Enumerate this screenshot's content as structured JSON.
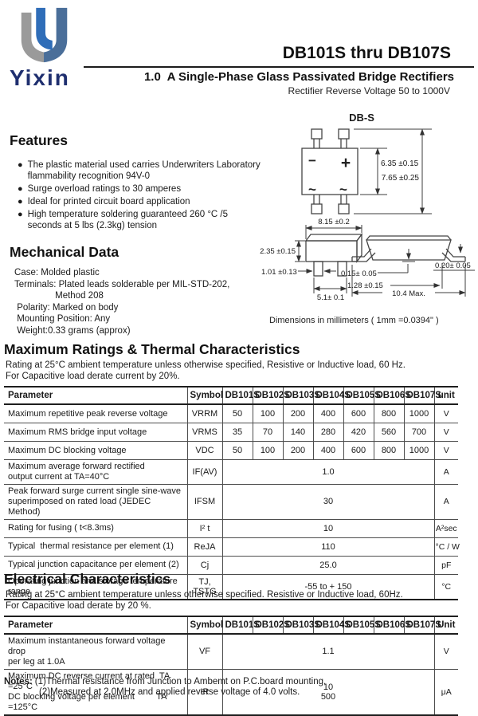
{
  "header": {
    "logo_text": "Yixin",
    "part_range": "DB101S thru DB107S",
    "subtitle": "1.0  A Single-Phase Glass Passivated Bridge Rectifiers",
    "subtitle2": "Rectifier Reverse Voltage 50 to 1000V"
  },
  "features": {
    "title": "Features",
    "bullet": "●",
    "items": [
      "The plastic material used carries Underwriters Laboratory\nflammability recognition 94V-0",
      "Surge overload ratings to 30 amperes",
      "Ideal for printed circuit board application",
      "High temperature soldering guaranteed 260 °C /5\nseconds at 5 lbs (2.3kg) tension"
    ]
  },
  "mechanical": {
    "title": "Mechanical Data",
    "lines": [
      "Case: Molded plastic",
      "Terminals: Plated leads solderable per MIL-STD-202,",
      "                Method 208",
      " Polarity: Marked on body",
      " Mounting Position: Any",
      " Weight:0.33 grams (approx)"
    ]
  },
  "package": {
    "name": "DB-S",
    "marks": {
      "minus": "−",
      "plus": "+",
      "ac1": "~",
      "ac2": "~"
    },
    "dims": {
      "body_h": "6.35 ±0.15",
      "overall_h": "7.65 ±0.25",
      "body_w": "8.15 ±0.2",
      "body_t": "2.35 ±0.15",
      "lead_w": "1.01 ±0.13",
      "lead_span": "5.1± 0.1",
      "standoff": "0.15± 0.05",
      "lead_len": "1.28 ±0.15",
      "lead_thk": "0.20± 0.05",
      "overall_w": "10.4 Max."
    },
    "caption": "Dimensions in millimeters ( 1mm =0.0394\" )"
  },
  "max_ratings": {
    "title": "Maximum Ratings & Thermal Characteristics",
    "note1": "Rating at 25°C ambient temperature unless otherwise specified, Resistive or Inductive load, 60 Hz.",
    "note2": "For Capacitive load derate current by 20%.",
    "columns": [
      "Parameter",
      "Symbol",
      "DB101S",
      "DB102S",
      "DB103S",
      "DB104S",
      "DB105S",
      "DB106S",
      "DB107S",
      "unit"
    ],
    "rows": [
      {
        "param": "Maximum repetitive peak reverse voltage",
        "symbol": "VRRM",
        "values": [
          "50",
          "100",
          "200",
          "400",
          "600",
          "800",
          "1000"
        ],
        "unit": "V"
      },
      {
        "param": "Maximum RMS bridge input voltage",
        "symbol": "VRMS",
        "values": [
          "35",
          "70",
          "140",
          "280",
          "420",
          "560",
          "700"
        ],
        "unit": "V"
      },
      {
        "param": "Maximum DC blocking voltage",
        "symbol": "VDC",
        "values": [
          "50",
          "100",
          "200",
          "400",
          "600",
          "800",
          "1000"
        ],
        "unit": "V"
      },
      {
        "param": "Maximum average forward rectified\noutput current at TA=40°C",
        "symbol": "IF(AV)",
        "value": "1.0",
        "unit": "A"
      },
      {
        "param": "Peak forward surge current single sine-wave\nsuperimposed on rated load (JEDEC Method)",
        "symbol": "IFSM",
        "value": "30",
        "unit": "A"
      },
      {
        "param": "Rating for fusing ( t<8.3ms)",
        "symbol": "I² t",
        "value": "10",
        "unit": "A²sec"
      },
      {
        "param": "Typical  thermal resistance per element (1)",
        "symbol": "ReJA",
        "value": "110",
        "unit": "°C / W"
      },
      {
        "param": "Typical junction capacitance per element (2)",
        "symbol": "Cj",
        "value": "25.0",
        "unit": "pF"
      },
      {
        "param": "Operating junction and storage temperature\nrange",
        "symbol": "TJ,\nTSTG",
        "value": "-55 to + 150",
        "unit": "°C"
      }
    ]
  },
  "electrical": {
    "title": "Electrical Characteristics",
    "note1": "Rating at 25°C ambient temperature unless otherwise specified. Resistive or Inductive load, 60Hz.",
    "note2": "For Capacitive load derate by 20 %.",
    "columns": [
      "Parameter",
      "Symbol",
      "DB101S",
      "DB102S",
      "DB103S",
      "DB104S",
      "DB105S",
      "DB106S",
      "DB107S",
      "Unit"
    ],
    "rows": [
      {
        "param": "Maximum instantaneous forward voltage drop\nper leg at 1.0A",
        "symbol": "VF",
        "value": "1.1",
        "unit": "V"
      },
      {
        "param": "Maximum DC reverse current at rated  TA =25°C\nDC blocking voltage per element         TA =125°C",
        "symbol": "IR",
        "value": "10\n500",
        "unit": "μA"
      }
    ]
  },
  "notes": {
    "label": "Notes:",
    "lines": [
      "(1)Thermal resistance from Junction to Ambemt on P.C.board mounting.",
      "(2)Measured at 2.0MHz and applied reverse voltage of 4.0 volts."
    ]
  }
}
